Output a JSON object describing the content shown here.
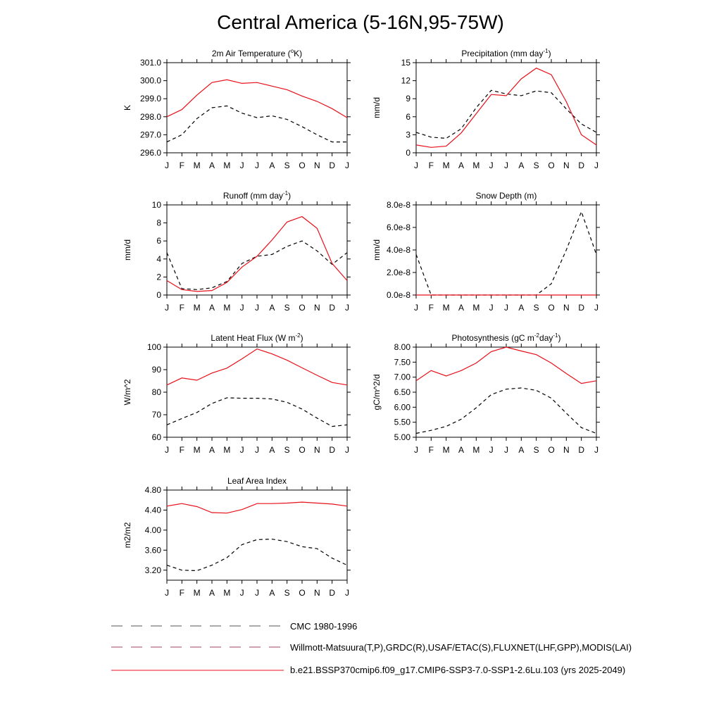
{
  "figure": {
    "title": "Central America (5-16N,95-75W)"
  },
  "legend": {
    "items": [
      {
        "label": "CMC 1980-1996",
        "style": "dashed",
        "color": "#555555"
      },
      {
        "label": "Willmott-Matsuura(T,P),GRDC(R),USAF/ETAC(S),FLUXNET(LHF,GPP),MODIS(LAI)",
        "style": "dashed",
        "color": "#a04060"
      },
      {
        "label": "b.e21.BSSP370cmip6.f09_g17.CMIP6-SSP3-7.0-SSP1-2.6Lu.103 (yrs 2025-2049)",
        "style": "solid",
        "color": "#e8101a"
      }
    ]
  },
  "colors": {
    "model": "#e8101a",
    "obs": "#000000"
  },
  "chart_data": [
    {
      "type": "line",
      "title": "2m Air Temperature (",
      "title_sup": "o",
      "title_post": "K)",
      "ylabel": "K",
      "categories": [
        "J",
        "F",
        "M",
        "A",
        "M",
        "J",
        "J",
        "A",
        "S",
        "O",
        "N",
        "D",
        "J"
      ],
      "ylim": [
        296.0,
        301.0
      ],
      "yticks": [
        "296.0",
        "297.0",
        "298.0",
        "299.0",
        "300.0",
        "301.0"
      ],
      "series": [
        {
          "style": "solid",
          "values": [
            298.0,
            298.4,
            299.2,
            299.9,
            300.05,
            299.85,
            299.9,
            299.7,
            299.5,
            299.15,
            298.85,
            298.45,
            297.95
          ]
        },
        {
          "style": "dashed",
          "values": [
            296.6,
            297.0,
            297.9,
            298.5,
            298.6,
            298.2,
            297.95,
            298.05,
            297.85,
            297.45,
            297.0,
            296.6,
            296.6
          ]
        }
      ]
    },
    {
      "type": "line",
      "title": "Precipitation (mm day",
      "title_sup": "-1",
      "title_post": ")",
      "ylabel": "mm/d",
      "categories": [
        "J",
        "F",
        "M",
        "A",
        "M",
        "J",
        "J",
        "A",
        "S",
        "O",
        "N",
        "D",
        "J"
      ],
      "ylim": [
        0,
        15
      ],
      "yticks": [
        "0",
        "3",
        "6",
        "9",
        "12",
        "15"
      ],
      "series": [
        {
          "style": "solid",
          "values": [
            1.3,
            0.9,
            1.1,
            3.3,
            6.5,
            9.7,
            9.5,
            12.3,
            14.1,
            13.0,
            8.5,
            3.0,
            1.3
          ]
        },
        {
          "style": "dashed",
          "values": [
            3.4,
            2.6,
            2.4,
            4.0,
            7.5,
            10.4,
            9.8,
            9.5,
            10.3,
            10.0,
            7.3,
            4.8,
            3.4
          ]
        }
      ]
    },
    {
      "type": "line",
      "title": "Runoff (mm day",
      "title_sup": "-1",
      "title_post": ")",
      "ylabel": "mm/d",
      "categories": [
        "J",
        "F",
        "M",
        "A",
        "M",
        "J",
        "J",
        "A",
        "S",
        "O",
        "N",
        "D",
        "J"
      ],
      "ylim": [
        0,
        10
      ],
      "yticks": [
        "0",
        "2",
        "4",
        "6",
        "8",
        "10"
      ],
      "series": [
        {
          "style": "solid",
          "values": [
            1.6,
            0.6,
            0.4,
            0.5,
            1.4,
            3.1,
            4.3,
            6.1,
            8.1,
            8.7,
            7.4,
            3.5,
            1.6
          ]
        },
        {
          "style": "dashed",
          "values": [
            4.7,
            0.7,
            0.6,
            0.8,
            1.5,
            3.5,
            4.3,
            4.5,
            5.4,
            6.0,
            4.9,
            3.4,
            4.7
          ]
        }
      ]
    },
    {
      "type": "line",
      "title": "Snow Depth (m)",
      "title_sup": "",
      "title_post": "",
      "ylabel": "mm/d",
      "categories": [
        "J",
        "F",
        "M",
        "A",
        "M",
        "J",
        "J",
        "A",
        "S",
        "O",
        "N",
        "D",
        "J"
      ],
      "ylim": [
        0,
        8e-08
      ],
      "yticks": [
        "0.0e-8",
        "2.0e-8",
        "4.0e-8",
        "6.0e-8",
        "8.0e-8"
      ],
      "series": [
        {
          "style": "solid",
          "values": [
            0,
            0,
            0,
            0,
            0,
            0,
            0,
            0,
            0,
            0,
            0,
            0,
            0
          ]
        },
        {
          "style": "dashed",
          "values": [
            3.6e-08,
            0,
            0,
            0,
            0,
            0,
            0,
            0,
            0,
            1e-08,
            4e-08,
            7.4e-08,
            3.6e-08
          ]
        }
      ]
    },
    {
      "type": "line",
      "title": "Latent Heat Flux (W m",
      "title_sup": "-2",
      "title_post": ")",
      "ylabel": "W/m^2",
      "categories": [
        "J",
        "F",
        "M",
        "A",
        "M",
        "J",
        "J",
        "A",
        "S",
        "O",
        "N",
        "D",
        "J"
      ],
      "ylim": [
        60,
        100
      ],
      "yticks": [
        "60",
        "70",
        "80",
        "90",
        "100"
      ],
      "series": [
        {
          "style": "solid",
          "values": [
            83.2,
            86.3,
            85.3,
            88.5,
            90.7,
            94.8,
            99.2,
            97.0,
            94.2,
            90.8,
            87.5,
            84.3,
            83.2
          ]
        },
        {
          "style": "dashed",
          "values": [
            65.5,
            68.3,
            71.0,
            75.0,
            77.5,
            77.3,
            77.3,
            77.0,
            75.5,
            72.5,
            68.5,
            64.8,
            65.5
          ]
        }
      ]
    },
    {
      "type": "line",
      "title": "Photosynthesis (gC m",
      "title_sup": "-2",
      "title_post": "day",
      "title_sup2": "-1",
      "title_post2": ")",
      "ylabel": "gC/m^2/d",
      "categories": [
        "J",
        "F",
        "M",
        "A",
        "M",
        "J",
        "J",
        "A",
        "S",
        "O",
        "N",
        "D",
        "J"
      ],
      "ylim": [
        5.0,
        8.0
      ],
      "yticks": [
        "5.00",
        "5.50",
        "6.00",
        "6.50",
        "7.00",
        "7.50",
        "8.00"
      ],
      "series": [
        {
          "style": "solid",
          "values": [
            6.88,
            7.22,
            7.04,
            7.22,
            7.47,
            7.85,
            8.0,
            7.87,
            7.75,
            7.47,
            7.12,
            6.79,
            6.88
          ]
        },
        {
          "style": "dashed",
          "values": [
            5.13,
            5.23,
            5.36,
            5.6,
            5.98,
            6.42,
            6.6,
            6.64,
            6.56,
            6.3,
            5.8,
            5.32,
            5.13
          ]
        }
      ]
    },
    {
      "type": "line",
      "title": "Leaf Area Index",
      "title_sup": "",
      "title_post": "",
      "ylabel": "m2/m2",
      "categories": [
        "J",
        "F",
        "M",
        "A",
        "M",
        "J",
        "J",
        "A",
        "S",
        "O",
        "N",
        "D",
        "J"
      ],
      "ylim": [
        3.0,
        4.8
      ],
      "yticks": [
        "3.20",
        "3.60",
        "4.00",
        "4.40",
        "4.80"
      ],
      "series": [
        {
          "style": "solid",
          "values": [
            4.48,
            4.53,
            4.47,
            4.35,
            4.34,
            4.41,
            4.53,
            4.53,
            4.54,
            4.56,
            4.54,
            4.52,
            4.48
          ]
        },
        {
          "style": "dashed",
          "values": [
            3.3,
            3.2,
            3.19,
            3.3,
            3.45,
            3.71,
            3.81,
            3.82,
            3.77,
            3.67,
            3.63,
            3.44,
            3.3
          ]
        }
      ]
    }
  ]
}
